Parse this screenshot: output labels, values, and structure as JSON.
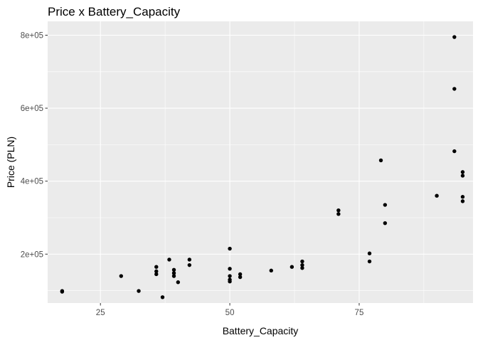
{
  "chart_data": {
    "type": "scatter",
    "title": "Price x Battery_Capacity",
    "xlabel": "Battery_Capacity",
    "ylabel": "Price (PLN)",
    "xlim": [
      14.8,
      97.0
    ],
    "ylim": [
      66000,
      838000
    ],
    "x_ticks": [
      25,
      50,
      75
    ],
    "x_tick_labels": [
      "25",
      "50",
      "75"
    ],
    "x_minor_ticks": [
      37.5,
      62.5,
      87.5
    ],
    "y_ticks": [
      200000,
      400000,
      600000,
      800000
    ],
    "y_tick_labels": [
      "2e+05",
      "4e+05",
      "6e+05",
      "8e+05"
    ],
    "y_minor_ticks": [
      100000,
      300000,
      500000,
      700000
    ],
    "grid": true,
    "colors": {
      "panel": "#ebebeb",
      "grid": "#ffffff",
      "point": "#000000",
      "text": "#000000",
      "tick_text": "#4d4d4d"
    },
    "points": [
      {
        "x": 17.6,
        "y": 97000
      },
      {
        "x": 17.6,
        "y": 99000
      },
      {
        "x": 29.0,
        "y": 140000
      },
      {
        "x": 32.4,
        "y": 99000
      },
      {
        "x": 35.8,
        "y": 145000
      },
      {
        "x": 35.8,
        "y": 153000
      },
      {
        "x": 35.8,
        "y": 165000
      },
      {
        "x": 37.0,
        "y": 82000
      },
      {
        "x": 38.3,
        "y": 185000
      },
      {
        "x": 39.2,
        "y": 140000
      },
      {
        "x": 39.2,
        "y": 148000
      },
      {
        "x": 39.2,
        "y": 157000
      },
      {
        "x": 40.0,
        "y": 123000
      },
      {
        "x": 42.2,
        "y": 170000
      },
      {
        "x": 42.2,
        "y": 185000
      },
      {
        "x": 50.0,
        "y": 125000
      },
      {
        "x": 50.0,
        "y": 130000
      },
      {
        "x": 50.0,
        "y": 140000
      },
      {
        "x": 50.0,
        "y": 160000
      },
      {
        "x": 50.0,
        "y": 215000
      },
      {
        "x": 52.0,
        "y": 137000
      },
      {
        "x": 52.0,
        "y": 145000
      },
      {
        "x": 58.0,
        "y": 155000
      },
      {
        "x": 62.0,
        "y": 165000
      },
      {
        "x": 64.0,
        "y": 162000
      },
      {
        "x": 64.0,
        "y": 170000
      },
      {
        "x": 64.0,
        "y": 180000
      },
      {
        "x": 71.0,
        "y": 310000
      },
      {
        "x": 71.0,
        "y": 320000
      },
      {
        "x": 77.0,
        "y": 180000
      },
      {
        "x": 77.0,
        "y": 202000
      },
      {
        "x": 79.2,
        "y": 457000
      },
      {
        "x": 80.0,
        "y": 285000
      },
      {
        "x": 80.0,
        "y": 335000
      },
      {
        "x": 90.0,
        "y": 360000
      },
      {
        "x": 93.4,
        "y": 482000
      },
      {
        "x": 93.4,
        "y": 653000
      },
      {
        "x": 93.4,
        "y": 795000
      },
      {
        "x": 95.0,
        "y": 345000
      },
      {
        "x": 95.0,
        "y": 357000
      },
      {
        "x": 95.0,
        "y": 415000
      },
      {
        "x": 95.0,
        "y": 425000
      }
    ]
  }
}
